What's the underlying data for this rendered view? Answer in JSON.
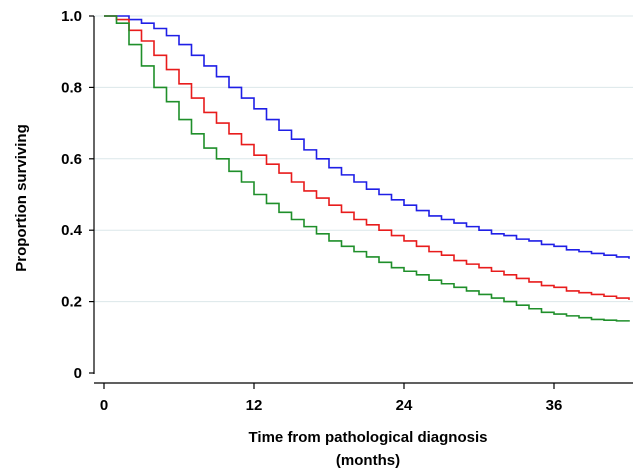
{
  "chart_data": {
    "type": "line",
    "step": true,
    "xlabel": [
      "Time from pathological diagnosis",
      "(months)"
    ],
    "ylabel": "Proportion surviving",
    "xlim": [
      0,
      42
    ],
    "ylim": [
      0,
      1
    ],
    "xticks": [
      0,
      12,
      24,
      36
    ],
    "xtick_labels": [
      "0",
      "12",
      "24",
      "36"
    ],
    "yticks": [
      0,
      0.2,
      0.4,
      0.6,
      0.8,
      1.0
    ],
    "ytick_labels": [
      "0",
      "0.2",
      "0.4",
      "0.6",
      "0.8",
      "1.0"
    ],
    "grid": "horizontal",
    "x": [
      0,
      1,
      2,
      3,
      4,
      5,
      6,
      7,
      8,
      9,
      10,
      11,
      12,
      13,
      14,
      15,
      16,
      17,
      18,
      19,
      20,
      21,
      22,
      23,
      24,
      25,
      26,
      27,
      28,
      29,
      30,
      31,
      32,
      33,
      34,
      35,
      36,
      37,
      38,
      39,
      40,
      41,
      42
    ],
    "series": [
      {
        "color": "#1f1fe6",
        "values": [
          1.0,
          1.0,
          0.99,
          0.98,
          0.965,
          0.945,
          0.92,
          0.89,
          0.86,
          0.83,
          0.8,
          0.77,
          0.74,
          0.71,
          0.68,
          0.655,
          0.625,
          0.6,
          0.575,
          0.555,
          0.535,
          0.515,
          0.5,
          0.485,
          0.47,
          0.455,
          0.44,
          0.43,
          0.42,
          0.41,
          0.4,
          0.39,
          0.385,
          0.375,
          0.37,
          0.36,
          0.355,
          0.345,
          0.34,
          0.335,
          0.33,
          0.325,
          0.32
        ]
      },
      {
        "color": "#e81c1c",
        "values": [
          1.0,
          0.99,
          0.96,
          0.93,
          0.89,
          0.85,
          0.81,
          0.77,
          0.73,
          0.7,
          0.67,
          0.64,
          0.61,
          0.585,
          0.56,
          0.535,
          0.51,
          0.49,
          0.47,
          0.45,
          0.43,
          0.415,
          0.4,
          0.385,
          0.37,
          0.355,
          0.34,
          0.33,
          0.315,
          0.305,
          0.295,
          0.285,
          0.275,
          0.265,
          0.255,
          0.245,
          0.24,
          0.23,
          0.225,
          0.22,
          0.215,
          0.21,
          0.205
        ]
      },
      {
        "color": "#1f8f2a",
        "values": [
          1.0,
          0.98,
          0.92,
          0.86,
          0.8,
          0.76,
          0.71,
          0.67,
          0.63,
          0.6,
          0.565,
          0.535,
          0.5,
          0.475,
          0.45,
          0.43,
          0.41,
          0.39,
          0.37,
          0.355,
          0.34,
          0.325,
          0.31,
          0.295,
          0.285,
          0.275,
          0.26,
          0.25,
          0.24,
          0.23,
          0.22,
          0.21,
          0.2,
          0.19,
          0.18,
          0.17,
          0.165,
          0.16,
          0.155,
          0.15,
          0.148,
          0.146,
          0.144
        ]
      }
    ]
  }
}
